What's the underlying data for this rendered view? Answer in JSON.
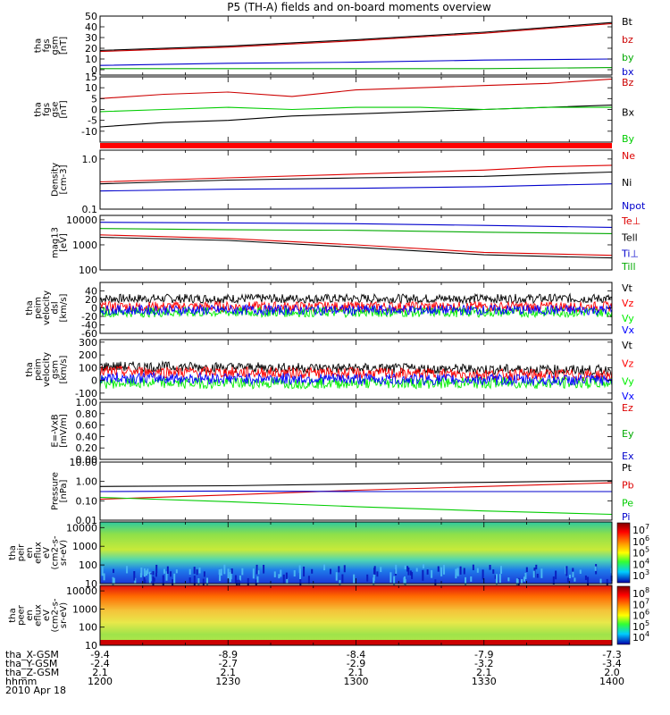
{
  "title": "P5 (TH-A) fields and on-board moments overview",
  "chart_data": [
    {
      "id": "fgs_gsm",
      "type": "line",
      "ylabel_lines": [
        "tha",
        "fgs",
        "gsm",
        "[nT]"
      ],
      "ylim": [
        -5,
        50
      ],
      "yticks": [
        50,
        40,
        30,
        20,
        10,
        0
      ],
      "series": [
        {
          "name": "Bt",
          "color": "#000000",
          "x": [
            1200,
            1230,
            1300,
            1330,
            1400
          ],
          "values": [
            18,
            22,
            28,
            35,
            44
          ]
        },
        {
          "name": "bz",
          "color": "#cc0000",
          "x": [
            1200,
            1230,
            1300,
            1330,
            1400
          ],
          "values": [
            17,
            21,
            27,
            34,
            43
          ]
        },
        {
          "name": "by",
          "color": "#00aa00",
          "x": [
            1200,
            1230,
            1300,
            1330,
            1400
          ],
          "values": [
            1,
            1,
            1,
            1,
            2
          ]
        },
        {
          "name": "bx",
          "color": "#0000cc",
          "x": [
            1200,
            1230,
            1300,
            1330,
            1400
          ],
          "values": [
            4,
            6,
            7,
            9,
            10
          ]
        }
      ]
    },
    {
      "id": "fgs_gse",
      "type": "line",
      "ylabel_lines": [
        "tha",
        "fgs",
        "gse",
        "[nT]"
      ],
      "ylim": [
        -15,
        15
      ],
      "yticks": [
        15,
        10,
        5,
        0,
        -5,
        -10
      ],
      "series": [
        {
          "name": "Bz",
          "color": "#cc0000",
          "x": [
            1200,
            1215,
            1230,
            1245,
            1300,
            1315,
            1330,
            1345,
            1400
          ],
          "values": [
            5,
            7,
            8,
            6,
            9,
            10,
            11,
            12,
            14
          ]
        },
        {
          "name": "Bx",
          "color": "#000000",
          "x": [
            1200,
            1215,
            1230,
            1245,
            1300,
            1315,
            1330,
            1345,
            1400
          ],
          "values": [
            -8,
            -6,
            -5,
            -3,
            -2,
            -1,
            0,
            1,
            2
          ]
        },
        {
          "name": "By",
          "color": "#00cc00",
          "x": [
            1200,
            1215,
            1230,
            1245,
            1300,
            1315,
            1330,
            1345,
            1400
          ],
          "values": [
            -1,
            0,
            1,
            0,
            1,
            1,
            0,
            1,
            1
          ]
        }
      ]
    },
    {
      "id": "density",
      "type": "line",
      "log": true,
      "ylabel_lines": [
        "Density",
        "[cm-3]"
      ],
      "ylim": [
        0.1,
        1.5
      ],
      "yticks": [
        1.0,
        0.1
      ],
      "series": [
        {
          "name": "Ne",
          "color": "#dd0000",
          "x": [
            1200,
            1230,
            1300,
            1330,
            1345,
            1400
          ],
          "values": [
            0.35,
            0.42,
            0.5,
            0.6,
            0.7,
            0.75
          ]
        },
        {
          "name": "Ni",
          "color": "#000000",
          "x": [
            1200,
            1230,
            1300,
            1330,
            1345,
            1400
          ],
          "values": [
            0.32,
            0.38,
            0.42,
            0.45,
            0.5,
            0.55
          ]
        },
        {
          "name": "Npot",
          "color": "#0000cc",
          "x": [
            1200,
            1230,
            1300,
            1330,
            1345,
            1400
          ],
          "values": [
            0.23,
            0.25,
            0.26,
            0.28,
            0.3,
            0.32
          ]
        }
      ]
    },
    {
      "id": "temperature",
      "type": "line",
      "log": true,
      "ylabel_lines": [
        "mag13",
        "[eV]"
      ],
      "ylim": [
        100,
        15000
      ],
      "yticks": [
        10000,
        1000,
        100
      ],
      "series": [
        {
          "name": "Te⊥",
          "color": "#dd0000",
          "x": [
            1200,
            1230,
            1300,
            1330,
            1400
          ],
          "values": [
            2500,
            1800,
            1000,
            500,
            380
          ]
        },
        {
          "name": "Tell",
          "color": "#000000",
          "x": [
            1200,
            1230,
            1300,
            1330,
            1400
          ],
          "values": [
            2000,
            1500,
            800,
            400,
            300
          ]
        },
        {
          "name": "Ti⊥",
          "color": "#0000cc",
          "x": [
            1200,
            1230,
            1300,
            1330,
            1400
          ],
          "values": [
            8000,
            7500,
            7000,
            6000,
            5000
          ]
        },
        {
          "name": "Till",
          "color": "#00aa00",
          "x": [
            1200,
            1230,
            1300,
            1330,
            1400
          ],
          "values": [
            4500,
            4000,
            3800,
            3200,
            2800
          ]
        }
      ]
    },
    {
      "id": "peim_dsl",
      "type": "line",
      "noise": true,
      "ylabel_lines": [
        "tha",
        "peim",
        "velocity",
        "dsl",
        "[km/s]"
      ],
      "ylim": [
        -60,
        60
      ],
      "yticks": [
        40,
        20,
        0,
        -20,
        -40,
        -60
      ],
      "series": [
        {
          "name": "Vt",
          "color": "#000000",
          "x": [
            1200,
            1400
          ],
          "values": [
            22,
            22
          ]
        },
        {
          "name": "Vz",
          "color": "#ff0000",
          "x": [
            1200,
            1400
          ],
          "values": [
            3,
            3
          ]
        },
        {
          "name": "Vy",
          "color": "#00ee00",
          "x": [
            1200,
            1400
          ],
          "values": [
            -10,
            -10
          ]
        },
        {
          "name": "Vx",
          "color": "#0000ff",
          "x": [
            1200,
            1400
          ],
          "values": [
            -5,
            -5
          ]
        }
      ]
    },
    {
      "id": "peim_gsm",
      "type": "line",
      "noise": true,
      "ylabel_lines": [
        "tha",
        "peim",
        "velocity",
        "gsm",
        "[km/s]"
      ],
      "ylim": [
        -150,
        320
      ],
      "yticks": [
        300,
        200,
        100,
        0,
        -100
      ],
      "series": [
        {
          "name": "Vt",
          "color": "#000000",
          "x": [
            1200,
            1400
          ],
          "values": [
            110,
            80
          ]
        },
        {
          "name": "Vz",
          "color": "#ff0000",
          "x": [
            1200,
            1400
          ],
          "values": [
            70,
            40
          ]
        },
        {
          "name": "Vy",
          "color": "#00ee00",
          "x": [
            1200,
            1400
          ],
          "values": [
            -20,
            -20
          ]
        },
        {
          "name": "Vx",
          "color": "#0000ff",
          "x": [
            1200,
            1400
          ],
          "values": [
            20,
            0
          ]
        }
      ]
    },
    {
      "id": "efield",
      "type": "line",
      "ylabel_lines": [
        "E=-VxB",
        "[mV/m]"
      ],
      "ylim": [
        0,
        1
      ],
      "yticks": [
        1.0,
        0.8,
        0.6,
        0.4,
        0.2,
        0.0
      ],
      "series": [
        {
          "name": "Ez",
          "color": "#dd0000",
          "x": [],
          "values": []
        },
        {
          "name": "Ey",
          "color": "#00aa00",
          "x": [],
          "values": []
        },
        {
          "name": "Ex",
          "color": "#0000cc",
          "x": [],
          "values": []
        }
      ]
    },
    {
      "id": "pressure",
      "type": "line",
      "log": true,
      "ylabel_lines": [
        "Pressure",
        "[nPa]"
      ],
      "ylim": [
        0.01,
        10
      ],
      "yticks": [
        10.0,
        1.0,
        0.1,
        0.01
      ],
      "series": [
        {
          "name": "Pt",
          "color": "#000000",
          "x": [
            1200,
            1230,
            1300,
            1330,
            1400
          ],
          "values": [
            0.55,
            0.6,
            0.75,
            0.9,
            1.1
          ]
        },
        {
          "name": "Pb",
          "color": "#dd0000",
          "x": [
            1200,
            1230,
            1300,
            1330,
            1400
          ],
          "values": [
            0.12,
            0.2,
            0.35,
            0.55,
            0.85
          ]
        },
        {
          "name": "Pe",
          "color": "#00cc00",
          "x": [
            1200,
            1230,
            1300,
            1330,
            1400
          ],
          "values": [
            0.15,
            0.09,
            0.05,
            0.03,
            0.02
          ]
        },
        {
          "name": "Pi",
          "color": "#0000cc",
          "x": [
            1200,
            1230,
            1300,
            1330,
            1400
          ],
          "values": [
            0.3,
            0.32,
            0.3,
            0.3,
            0.3
          ]
        }
      ]
    },
    {
      "id": "peir",
      "type": "heatmap",
      "ylabel_lines": [
        "tha",
        "peir",
        "en",
        "eflux",
        "eV",
        "(cm2-s-",
        "sr-eV)"
      ],
      "yticks": [
        10000,
        1000,
        100,
        10
      ],
      "colorbar_exponents": [
        7,
        6,
        5,
        4,
        3
      ]
    },
    {
      "id": "peer",
      "type": "heatmap",
      "ylabel_lines": [
        "tha",
        "peer",
        "en",
        "eflux",
        "eV",
        "(cm2-s-",
        "sr-eV)"
      ],
      "yticks": [
        10000,
        1000,
        100,
        10
      ],
      "colorbar_exponents": [
        8,
        7,
        6,
        5,
        4
      ]
    }
  ],
  "colorbar_base": "10",
  "xaxis": {
    "rows": [
      {
        "label": "tha_X-GSM",
        "values": [
          "-9.4",
          "-8.9",
          "-8.4",
          "-7.9",
          "-7.3"
        ]
      },
      {
        "label": "tha_Y-GSM",
        "values": [
          "-2.4",
          "-2.7",
          "-2.9",
          "-3.2",
          "-3.4"
        ]
      },
      {
        "label": "tha_Z-GSM",
        "values": [
          "2.1",
          "2.1",
          "2.1",
          "2.1",
          "2.0"
        ]
      },
      {
        "label": "hhmm",
        "values": [
          "1200",
          "1230",
          "1300",
          "1330",
          "1400"
        ]
      }
    ],
    "date": "2010 Apr 18"
  }
}
